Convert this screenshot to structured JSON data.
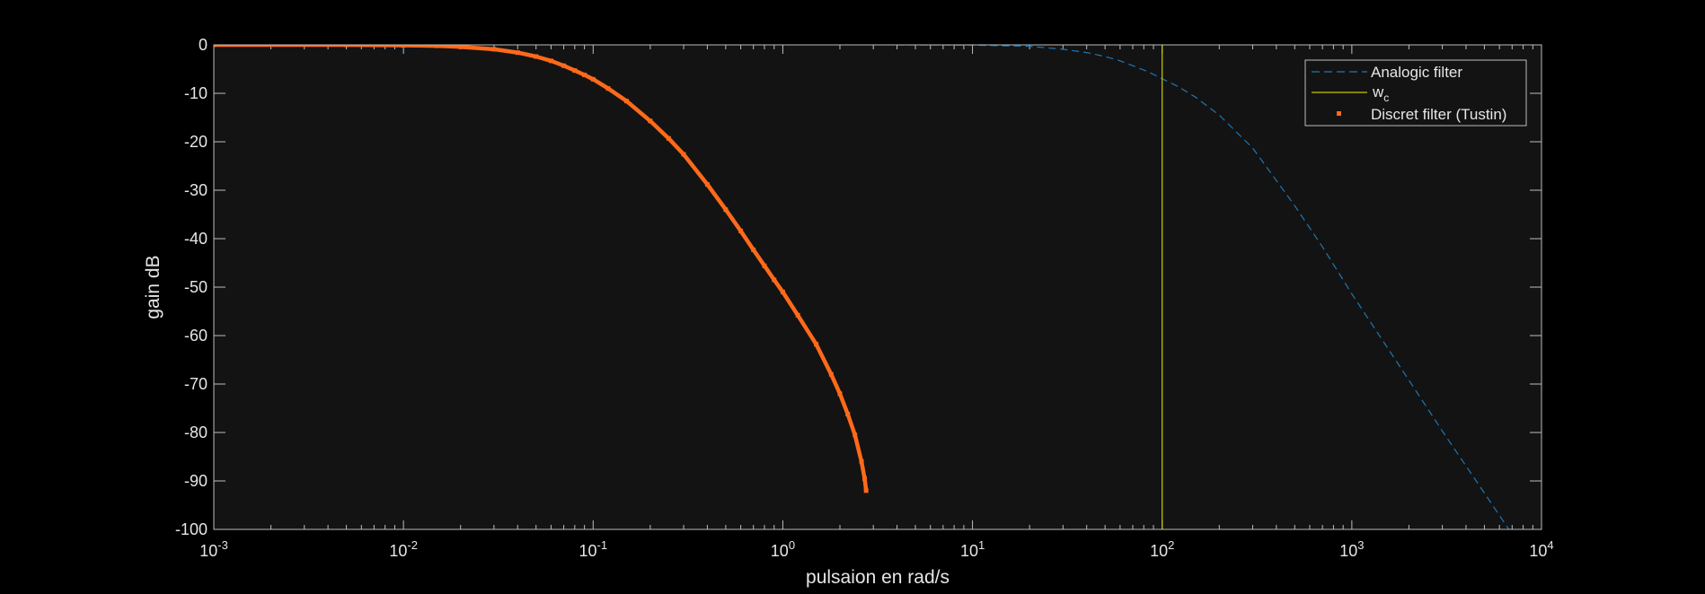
{
  "chart_data": {
    "type": "line",
    "title": "",
    "xlabel": "pulsaion en rad/s",
    "ylabel": "gain  dB",
    "xscale": "log",
    "xlim": [
      0.001,
      10000
    ],
    "ylim": [
      -100,
      0
    ],
    "xticks": [
      {
        "base": "10",
        "exp": "-3",
        "value": 0.001
      },
      {
        "base": "10",
        "exp": "-2",
        "value": 0.01
      },
      {
        "base": "10",
        "exp": "-1",
        "value": 0.1
      },
      {
        "base": "10",
        "exp": "0",
        "value": 1
      },
      {
        "base": "10",
        "exp": "1",
        "value": 10
      },
      {
        "base": "10",
        "exp": "2",
        "value": 100
      },
      {
        "base": "10",
        "exp": "3",
        "value": 1000
      },
      {
        "base": "10",
        "exp": "4",
        "value": 10000
      }
    ],
    "yticks": [
      "0",
      "-10",
      "-20",
      "-30",
      "-40",
      "-50",
      "-60",
      "-70",
      "-80",
      "-90",
      "-100"
    ],
    "grid": false,
    "legend_position": "top-right",
    "legend": [
      {
        "label": "Analogic filter",
        "style": "dashed-line",
        "color": "#1f77b4"
      },
      {
        "label_main": "w",
        "label_sub": "c",
        "style": "solid-line",
        "color": "#c8c800"
      },
      {
        "label": "Discret filter (Tustin)",
        "style": "point",
        "color": "#ff6a1a"
      }
    ],
    "series": [
      {
        "name": "Analogic filter",
        "style": "dashed",
        "color": "#1f77b4",
        "points": [
          [
            4,
            0
          ],
          [
            10,
            -0.05
          ],
          [
            20,
            -0.3
          ],
          [
            30,
            -0.9
          ],
          [
            40,
            -1.6
          ],
          [
            50,
            -2.4
          ],
          [
            60,
            -3.3
          ],
          [
            70,
            -4.3
          ],
          [
            80,
            -5.2
          ],
          [
            90,
            -6.1
          ],
          [
            100,
            -7
          ],
          [
            120,
            -8.5
          ],
          [
            150,
            -10.8
          ],
          [
            200,
            -14.5
          ],
          [
            300,
            -21.3
          ],
          [
            500,
            -33.2
          ],
          [
            700,
            -41.7
          ],
          [
            1000,
            -51.4
          ],
          [
            2000,
            -69.2
          ],
          [
            3000,
            -79.7
          ],
          [
            5000,
            -92.5
          ],
          [
            7000,
            -101
          ],
          [
            10000,
            -111
          ]
        ]
      },
      {
        "name": "w_c",
        "style": "vline",
        "color": "#c8c800",
        "x": 100
      },
      {
        "name": "Discret filter (Tustin)",
        "style": "points",
        "color": "#ff6a1a",
        "points": [
          [
            0.001,
            0
          ],
          [
            0.005,
            0
          ],
          [
            0.01,
            -0.1
          ],
          [
            0.015,
            -0.2
          ],
          [
            0.02,
            -0.4
          ],
          [
            0.03,
            -0.9
          ],
          [
            0.04,
            -1.6
          ],
          [
            0.05,
            -2.4
          ],
          [
            0.06,
            -3.3
          ],
          [
            0.07,
            -4.3
          ],
          [
            0.08,
            -5.3
          ],
          [
            0.09,
            -6.2
          ],
          [
            0.1,
            -7.1
          ],
          [
            0.12,
            -9
          ],
          [
            0.15,
            -11.6
          ],
          [
            0.2,
            -15.7
          ],
          [
            0.25,
            -19.3
          ],
          [
            0.3,
            -22.6
          ],
          [
            0.4,
            -28.8
          ],
          [
            0.5,
            -34
          ],
          [
            0.6,
            -38.4
          ],
          [
            0.7,
            -42.3
          ],
          [
            0.8,
            -45.6
          ],
          [
            0.9,
            -48.5
          ],
          [
            1,
            -51
          ],
          [
            1.2,
            -55.8
          ],
          [
            1.5,
            -61.8
          ],
          [
            1.8,
            -68
          ],
          [
            2,
            -72
          ],
          [
            2.2,
            -76.2
          ],
          [
            2.4,
            -80.5
          ],
          [
            2.6,
            -86
          ],
          [
            2.7,
            -89.5
          ],
          [
            2.75,
            -92
          ]
        ]
      }
    ]
  }
}
